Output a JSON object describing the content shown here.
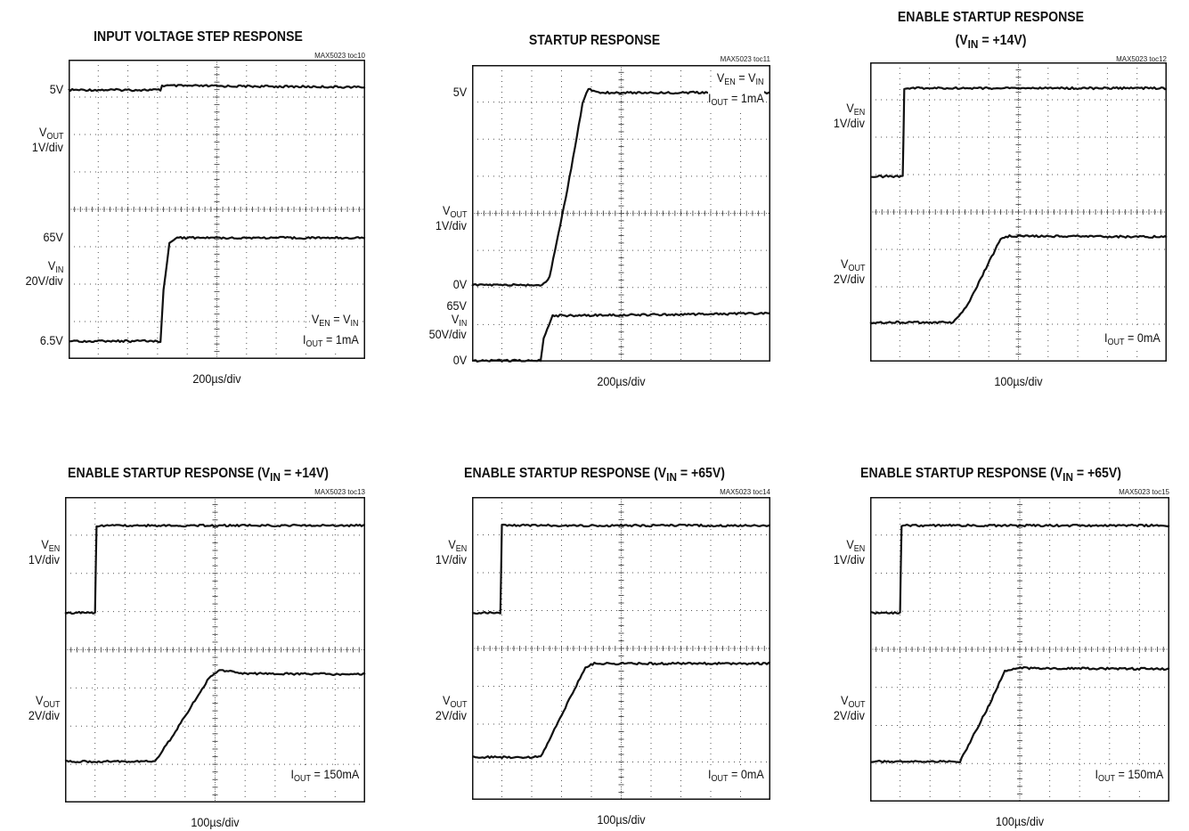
{
  "colors": {
    "trace": "#111111",
    "grid": "#555555",
    "frame": "#111111",
    "background": "#ffffff"
  },
  "chart_data": [
    {
      "type": "line",
      "title": "INPUT VOLTAGE STEP RESPONSE",
      "tag": "MAX5023 toc10",
      "xlabel": "200µs/div",
      "x_range": [
        0,
        2000
      ],
      "x_unit": "µs",
      "channels": [
        {
          "name": "VOUT",
          "label_lines": [
            "V<sub>OUT</sub>",
            "1V/div"
          ],
          "values": [
            [
              "5V",
              5.0
            ]
          ]
        },
        {
          "name": "VIN",
          "label_lines": [
            "V<sub>IN</sub>",
            "20V/div"
          ],
          "values": [
            [
              "65V",
              65
            ],
            [
              "6.5V",
              6.5
            ]
          ]
        }
      ],
      "series": [
        {
          "name": "VOUT",
          "x": [
            0,
            620,
            630,
            2000
          ],
          "y": [
            5.0,
            5.0,
            5.12,
            5.08
          ]
        },
        {
          "name": "VIN",
          "x": [
            0,
            620,
            640,
            680,
            720,
            2000
          ],
          "y": [
            6.5,
            6.5,
            35,
            62,
            65,
            65
          ]
        }
      ],
      "notes": [
        "V<sub>EN</sub> = V<sub>IN</sub>",
        "I<sub>OUT</sub> = 1mA"
      ]
    },
    {
      "type": "line",
      "title": "STARTUP RESPONSE",
      "tag": "MAX5023 toc11",
      "xlabel": "200µs/div",
      "x_range": [
        0,
        2000
      ],
      "x_unit": "µs",
      "channels": [
        {
          "name": "VOUT",
          "label_lines": [
            "V<sub>OUT</sub>",
            "1V/div"
          ],
          "values": [
            [
              "5V",
              5.0
            ],
            [
              "0V",
              0
            ]
          ]
        },
        {
          "name": "VIN",
          "label_lines": [
            "V<sub>IN</sub>",
            "50V/div"
          ],
          "values": [
            [
              "65V",
              65
            ],
            [
              "0V",
              0
            ]
          ]
        }
      ],
      "series": [
        {
          "name": "VOUT",
          "x": [
            0,
            470,
            520,
            640,
            740,
            780,
            860,
            2000
          ],
          "y": [
            0,
            0,
            0.2,
            2.5,
            4.7,
            5.1,
            5.0,
            5.0
          ]
        },
        {
          "name": "VIN",
          "x": [
            0,
            460,
            480,
            540,
            2000
          ],
          "y": [
            0,
            0,
            30,
            62,
            65
          ]
        }
      ],
      "notes": [
        "V<sub>EN</sub> = V<sub>IN</sub>",
        "I<sub>OUT</sub> = 1mA"
      ]
    },
    {
      "type": "line",
      "title": "ENABLE STARTUP RESPONSE\n(V<sub>IN</sub> = +14V)",
      "tag": "MAX5023 toc12",
      "xlabel": "100µs/div",
      "x_range": [
        0,
        1000
      ],
      "x_unit": "µs",
      "channels": [
        {
          "name": "VEN",
          "label_lines": [
            "V<sub>EN</sub>",
            "1V/div"
          ],
          "values": []
        },
        {
          "name": "VOUT",
          "label_lines": [
            "V<sub>OUT</sub>",
            "2V/div"
          ],
          "values": []
        }
      ],
      "series": [
        {
          "name": "VEN",
          "x": [
            0,
            110,
            115,
            1000
          ],
          "y": [
            0,
            0,
            2.5,
            2.5
          ]
        },
        {
          "name": "VOUT",
          "x": [
            0,
            280,
            330,
            440,
            470,
            1000
          ],
          "y": [
            0,
            0,
            1.0,
            4.7,
            4.85,
            4.8
          ]
        }
      ],
      "notes": [
        "I<sub>OUT</sub> = 0mA"
      ]
    },
    {
      "type": "line",
      "title": "ENABLE STARTUP RESPONSE (V<sub>IN</sub> = +14V)",
      "tag": "MAX5023 toc13",
      "xlabel": "100µs/div",
      "x_range": [
        0,
        1000
      ],
      "x_unit": "µs",
      "channels": [
        {
          "name": "VEN",
          "label_lines": [
            "V<sub>EN</sub>",
            "1V/div"
          ],
          "values": []
        },
        {
          "name": "VOUT",
          "label_lines": [
            "V<sub>OUT</sub>",
            "2V/div"
          ],
          "values": []
        }
      ],
      "series": [
        {
          "name": "VEN",
          "x": [
            0,
            100,
            105,
            1000
          ],
          "y": [
            0,
            0,
            2.5,
            2.5
          ]
        },
        {
          "name": "VOUT",
          "x": [
            0,
            300,
            350,
            480,
            520,
            580,
            1000
          ],
          "y": [
            0,
            0,
            1.2,
            4.6,
            5.05,
            4.85,
            4.8
          ]
        }
      ],
      "notes": [
        "I<sub>OUT</sub> = 150mA"
      ]
    },
    {
      "type": "line",
      "title": "ENABLE STARTUP RESPONSE (V<sub>IN</sub> = +65V)",
      "tag": "MAX5023 toc14",
      "xlabel": "100µs/div",
      "x_range": [
        0,
        1000
      ],
      "x_unit": "µs",
      "channels": [
        {
          "name": "VEN",
          "label_lines": [
            "V<sub>EN</sub>",
            "1V/div"
          ],
          "values": []
        },
        {
          "name": "VOUT",
          "label_lines": [
            "V<sub>OUT</sub>",
            "2V/div"
          ],
          "values": []
        }
      ],
      "series": [
        {
          "name": "VEN",
          "x": [
            0,
            95,
            100,
            1000
          ],
          "y": [
            0,
            0,
            2.5,
            2.5
          ]
        },
        {
          "name": "VOUT",
          "x": [
            0,
            230,
            270,
            380,
            410,
            1000
          ],
          "y": [
            0,
            0,
            1.3,
            4.8,
            5.0,
            5.0
          ]
        }
      ],
      "notes": [
        "I<sub>OUT</sub> = 0mA"
      ]
    },
    {
      "type": "line",
      "title": "ENABLE STARTUP RESPONSE (V<sub>IN</sub> = +65V)",
      "tag": "MAX5023 toc15",
      "xlabel": "100µs/div",
      "x_range": [
        0,
        1000
      ],
      "x_unit": "µs",
      "channels": [
        {
          "name": "VEN",
          "label_lines": [
            "V<sub>EN</sub>",
            "1V/div"
          ],
          "values": []
        },
        {
          "name": "VOUT",
          "label_lines": [
            "V<sub>OUT</sub>",
            "2V/div"
          ],
          "values": []
        }
      ],
      "series": [
        {
          "name": "VEN",
          "x": [
            0,
            100,
            105,
            1000
          ],
          "y": [
            0,
            0,
            2.5,
            2.5
          ]
        },
        {
          "name": "VOUT",
          "x": [
            0,
            300,
            340,
            400,
            450,
            490,
            1000
          ],
          "y": [
            0,
            0,
            1.2,
            3.0,
            4.7,
            4.85,
            4.8
          ]
        }
      ],
      "notes": [
        "I<sub>OUT</sub> = 150mA"
      ]
    }
  ]
}
